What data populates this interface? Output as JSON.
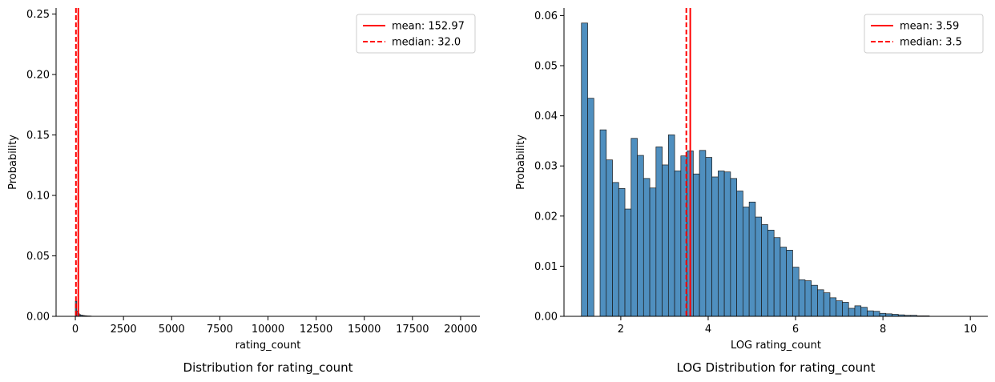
{
  "chart_data": [
    {
      "type": "bar",
      "title": "Distribution for rating_count",
      "xlabel": "rating_count",
      "ylabel": "Probability",
      "xlim": [
        -1000,
        21000
      ],
      "ylim": [
        0,
        0.255
      ],
      "xticks": [
        0,
        2500,
        5000,
        7500,
        10000,
        12500,
        15000,
        17500,
        20000
      ],
      "yticks": [
        0.0,
        0.05,
        0.1,
        0.15,
        0.2,
        0.25
      ],
      "grid": false,
      "legend_position": "top-right",
      "bin_width": 70,
      "bin_start": 0,
      "values": [
        0.0125,
        0.0042,
        0.0022,
        0.0014,
        0.001,
        0.0008,
        0.0006,
        0.0005,
        0.0004,
        0.0003,
        0.0003,
        0.0002
      ],
      "lines": [
        {
          "label": "mean: 152.97",
          "value": 152.97,
          "style": "solid",
          "color": "#ff0000"
        },
        {
          "label": "median: 32.0",
          "value": 32.0,
          "style": "dashed",
          "color": "#ff0000"
        }
      ],
      "bar_color": "#4f8fbf"
    },
    {
      "type": "bar",
      "title": "LOG Distribution for rating_count",
      "xlabel": "LOG rating_count",
      "ylabel": "Probability",
      "xlim": [
        0.7,
        10.4
      ],
      "ylim": [
        0,
        0.0615
      ],
      "xticks": [
        2,
        4,
        6,
        8,
        10
      ],
      "yticks": [
        0.0,
        0.01,
        0.02,
        0.03,
        0.04,
        0.05,
        0.06
      ],
      "grid": false,
      "legend_position": "top-right",
      "bin_start": 1.099,
      "bin_width": 0.1422,
      "values": [
        0.0585,
        0.0435,
        0,
        0.0372,
        0.0312,
        0.0267,
        0.0255,
        0.0214,
        0.0355,
        0.0321,
        0.0275,
        0.0256,
        0.0338,
        0.0302,
        0.0362,
        0.029,
        0.032,
        0.033,
        0.0284,
        0.0331,
        0.0317,
        0.0278,
        0.029,
        0.0288,
        0.0275,
        0.025,
        0.0218,
        0.0228,
        0.0198,
        0.0183,
        0.0172,
        0.0157,
        0.0138,
        0.0132,
        0.0098,
        0.0073,
        0.0071,
        0.0062,
        0.0053,
        0.0047,
        0.0037,
        0.0031,
        0.0028,
        0.0016,
        0.0021,
        0.0018,
        0.0011,
        0.001,
        0.0006,
        0.0005,
        0.0004,
        0.0003,
        0.0002,
        0.0002,
        0.0001,
        0.0001
      ],
      "lines": [
        {
          "label": "mean: 3.59",
          "value": 3.59,
          "style": "solid",
          "color": "#ff0000"
        },
        {
          "label": "median: 3.5",
          "value": 3.5,
          "style": "dashed",
          "color": "#ff0000"
        }
      ],
      "bar_color": "#4f8fbf"
    }
  ]
}
